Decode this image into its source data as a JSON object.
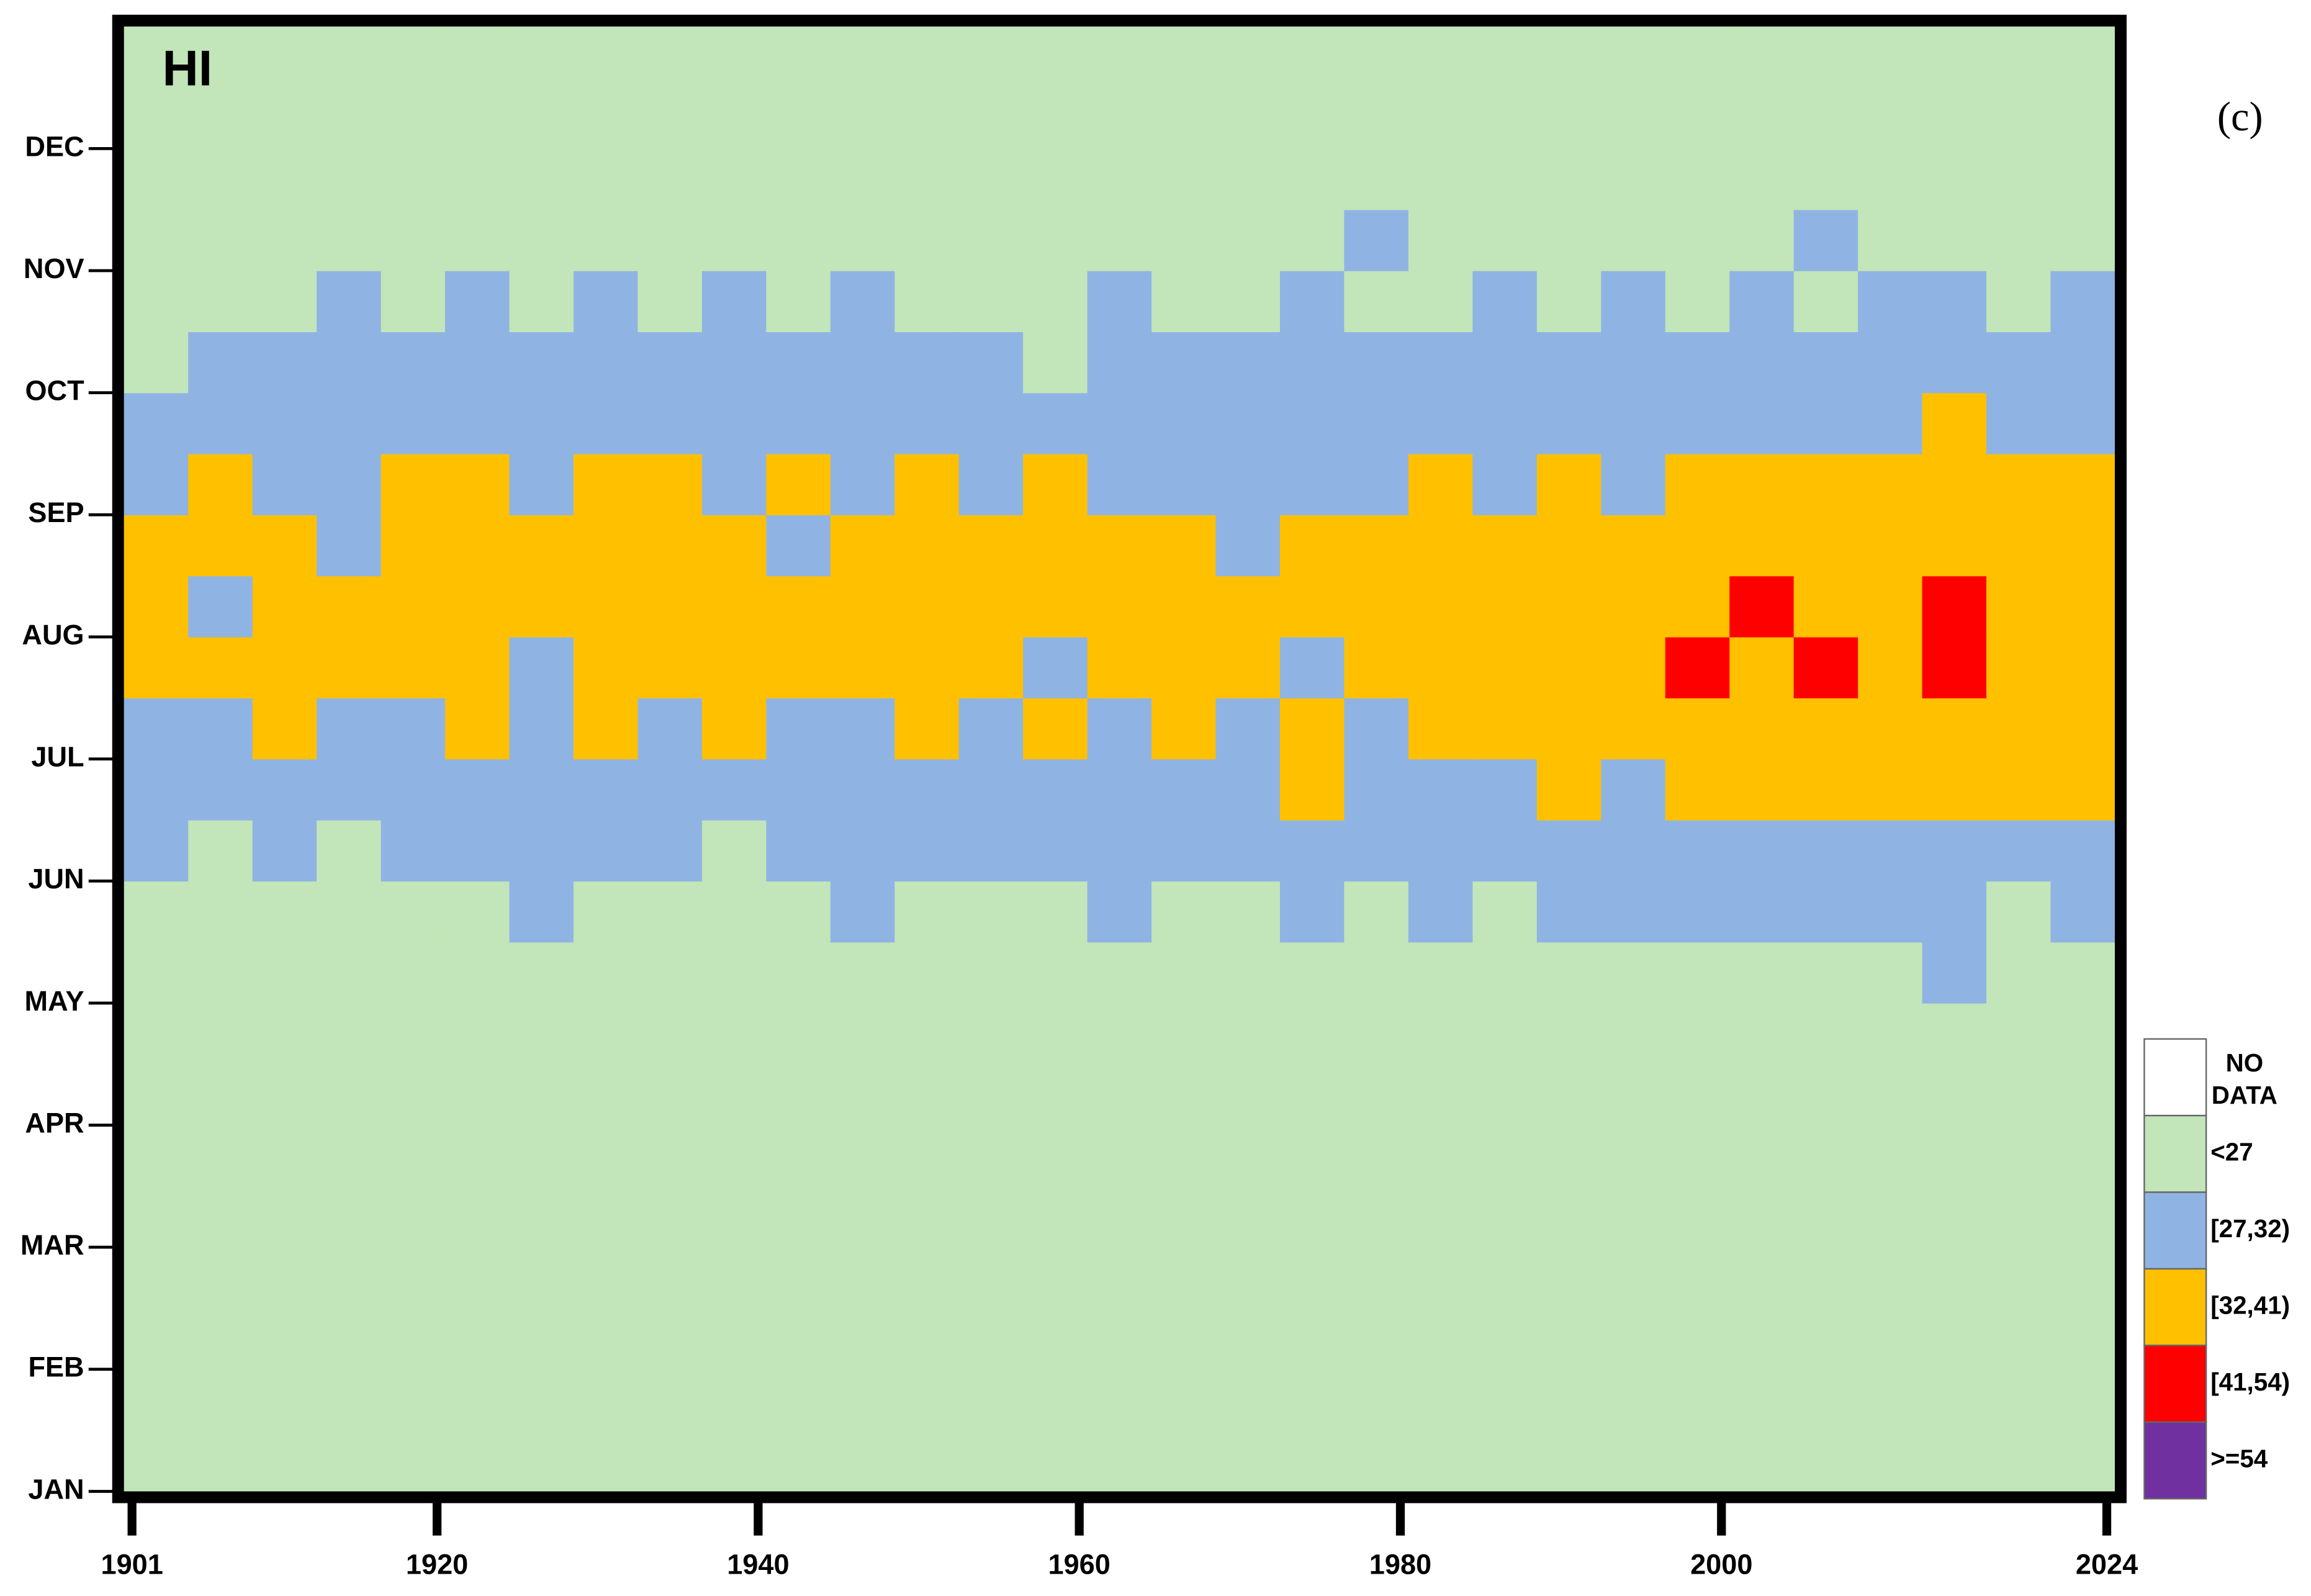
{
  "chart_data": {
    "type": "heatmap",
    "title": "HI",
    "annotation": "(c)",
    "xlim": [
      1900.5,
      2024.5
    ],
    "xticks": [
      1901,
      1920,
      1940,
      1960,
      1980,
      2000,
      2024
    ],
    "ylim": [
      0,
      12
    ],
    "yticks": [
      {
        "value": 0,
        "label": "JAN"
      },
      {
        "value": 1,
        "label": "FEB"
      },
      {
        "value": 2,
        "label": "MAR"
      },
      {
        "value": 3,
        "label": "APR"
      },
      {
        "value": 4,
        "label": "MAY"
      },
      {
        "value": 5,
        "label": "JUN"
      },
      {
        "value": 6,
        "label": "JUL"
      },
      {
        "value": 7,
        "label": "AUG"
      },
      {
        "value": 8,
        "label": "SEP"
      },
      {
        "value": 9,
        "label": "OCT"
      },
      {
        "value": 10,
        "label": "NOV"
      },
      {
        "value": 11,
        "label": "DEC"
      }
    ],
    "x_edges": [
      1900.5,
      1904.5,
      1908.5,
      1912.5,
      1916.5,
      1920.5,
      1924.5,
      1928.5,
      1932.5,
      1936.5,
      1940.5,
      1944.5,
      1948.5,
      1952.5,
      1956.5,
      1960.5,
      1964.5,
      1968.5,
      1972.5,
      1976.5,
      1980.5,
      1984.5,
      1988.5,
      1992.5,
      1996.5,
      2000.5,
      2004.5,
      2008.5,
      2012.5,
      2016.5,
      2020.5,
      2024.5
    ],
    "y_edges": [
      0,
      0.5,
      1,
      1.5,
      2,
      2.5,
      3,
      3.5,
      4,
      4.5,
      5,
      5.5,
      6,
      6.5,
      7,
      7.5,
      8,
      8.5,
      9,
      9.5,
      10,
      10.5,
      11,
      11.5,
      12
    ],
    "classes": [
      {
        "label": "NO DATA",
        "color": "#ffffff"
      },
      {
        "label": "<27",
        "color": "#c2e5b9"
      },
      {
        "label": "[27,32)",
        "color": "#8fb4e3"
      },
      {
        "label": "[32,41)",
        "color": "#ffc000"
      },
      {
        "label": "[41,54)",
        "color": "#ff0000"
      },
      {
        "label": ">=54",
        "color": "#7030a0"
      }
    ],
    "z": [
      [
        1,
        1,
        1,
        1,
        1,
        1,
        1,
        1,
        1,
        1,
        1,
        1,
        1,
        1,
        1,
        1,
        1,
        1,
        1,
        1,
        1,
        1,
        1,
        1,
        1,
        1,
        1,
        1,
        1,
        1,
        1
      ],
      [
        1,
        1,
        1,
        1,
        1,
        1,
        1,
        1,
        1,
        1,
        1,
        1,
        1,
        1,
        1,
        1,
        1,
        1,
        1,
        1,
        1,
        1,
        1,
        1,
        1,
        1,
        1,
        1,
        1,
        1,
        1
      ],
      [
        1,
        1,
        1,
        1,
        1,
        1,
        1,
        1,
        1,
        1,
        1,
        1,
        1,
        1,
        1,
        1,
        1,
        1,
        1,
        1,
        1,
        1,
        1,
        1,
        1,
        1,
        1,
        1,
        1,
        1,
        1
      ],
      [
        1,
        1,
        1,
        1,
        1,
        1,
        1,
        1,
        1,
        1,
        1,
        1,
        1,
        1,
        1,
        1,
        1,
        1,
        1,
        1,
        1,
        1,
        1,
        1,
        1,
        1,
        1,
        1,
        1,
        1,
        1
      ],
      [
        1,
        1,
        1,
        1,
        1,
        1,
        1,
        1,
        1,
        1,
        1,
        1,
        1,
        1,
        1,
        1,
        1,
        1,
        1,
        1,
        1,
        1,
        1,
        1,
        1,
        1,
        1,
        1,
        1,
        1,
        1
      ],
      [
        1,
        1,
        1,
        1,
        1,
        1,
        1,
        1,
        1,
        1,
        1,
        1,
        1,
        1,
        1,
        1,
        1,
        1,
        1,
        1,
        1,
        1,
        1,
        1,
        1,
        1,
        1,
        1,
        1,
        1,
        1
      ],
      [
        1,
        1,
        1,
        1,
        1,
        1,
        1,
        1,
        1,
        1,
        1,
        1,
        1,
        1,
        1,
        1,
        1,
        1,
        1,
        1,
        1,
        1,
        1,
        1,
        1,
        1,
        1,
        1,
        1,
        1,
        1
      ],
      [
        1,
        1,
        1,
        1,
        1,
        1,
        1,
        1,
        1,
        1,
        1,
        1,
        1,
        1,
        1,
        1,
        1,
        1,
        1,
        1,
        1,
        1,
        1,
        1,
        1,
        1,
        1,
        1,
        1,
        1,
        1
      ],
      [
        1,
        1,
        1,
        1,
        1,
        1,
        1,
        1,
        1,
        1,
        1,
        1,
        1,
        1,
        1,
        1,
        1,
        1,
        1,
        1,
        1,
        1,
        1,
        1,
        1,
        1,
        1,
        1,
        2,
        1,
        1
      ],
      [
        1,
        1,
        1,
        1,
        1,
        1,
        2,
        1,
        1,
        1,
        1,
        2,
        1,
        1,
        1,
        2,
        1,
        1,
        2,
        1,
        2,
        1,
        2,
        2,
        2,
        2,
        2,
        2,
        2,
        1,
        2
      ],
      [
        2,
        1,
        2,
        1,
        2,
        2,
        2,
        2,
        2,
        1,
        2,
        2,
        2,
        2,
        2,
        2,
        2,
        2,
        2,
        2,
        2,
        2,
        2,
        2,
        2,
        2,
        2,
        2,
        2,
        2,
        2
      ],
      [
        2,
        2,
        2,
        2,
        2,
        2,
        2,
        2,
        2,
        2,
        2,
        2,
        2,
        2,
        2,
        2,
        2,
        2,
        3,
        2,
        2,
        2,
        3,
        2,
        3,
        3,
        3,
        3,
        3,
        3,
        3
      ],
      [
        2,
        2,
        3,
        2,
        2,
        3,
        2,
        3,
        2,
        3,
        2,
        2,
        3,
        2,
        3,
        2,
        3,
        2,
        3,
        2,
        3,
        3,
        3,
        3,
        3,
        3,
        3,
        3,
        3,
        3,
        3
      ],
      [
        3,
        3,
        3,
        3,
        3,
        3,
        2,
        3,
        3,
        3,
        3,
        3,
        3,
        3,
        2,
        3,
        3,
        3,
        2,
        3,
        3,
        3,
        3,
        3,
        4,
        3,
        4,
        3,
        4,
        3,
        3
      ],
      [
        3,
        2,
        3,
        3,
        3,
        3,
        3,
        3,
        3,
        3,
        3,
        3,
        3,
        3,
        3,
        3,
        3,
        3,
        3,
        3,
        3,
        3,
        3,
        3,
        3,
        4,
        3,
        3,
        4,
        3,
        3
      ],
      [
        3,
        3,
        3,
        2,
        3,
        3,
        3,
        3,
        3,
        3,
        2,
        3,
        3,
        3,
        3,
        3,
        3,
        2,
        3,
        3,
        3,
        3,
        3,
        3,
        3,
        3,
        3,
        3,
        3,
        3,
        3
      ],
      [
        2,
        3,
        2,
        2,
        3,
        3,
        2,
        3,
        3,
        2,
        3,
        2,
        3,
        2,
        3,
        2,
        2,
        2,
        2,
        2,
        3,
        2,
        3,
        2,
        3,
        3,
        3,
        3,
        3,
        3,
        3
      ],
      [
        2,
        2,
        2,
        2,
        2,
        2,
        2,
        2,
        2,
        2,
        2,
        2,
        2,
        2,
        2,
        2,
        2,
        2,
        2,
        2,
        2,
        2,
        2,
        2,
        2,
        2,
        2,
        2,
        3,
        2,
        2
      ],
      [
        1,
        2,
        2,
        2,
        2,
        2,
        2,
        2,
        2,
        2,
        2,
        2,
        2,
        2,
        1,
        2,
        2,
        2,
        2,
        2,
        2,
        2,
        2,
        2,
        2,
        2,
        2,
        2,
        2,
        2,
        2
      ],
      [
        1,
        1,
        1,
        2,
        1,
        2,
        1,
        2,
        1,
        2,
        1,
        2,
        1,
        1,
        1,
        2,
        1,
        1,
        2,
        1,
        1,
        2,
        1,
        2,
        1,
        2,
        1,
        2,
        2,
        1,
        2
      ],
      [
        1,
        1,
        1,
        1,
        1,
        1,
        1,
        1,
        1,
        1,
        1,
        1,
        1,
        1,
        1,
        1,
        1,
        1,
        1,
        2,
        1,
        1,
        1,
        1,
        1,
        1,
        2,
        1,
        1,
        1,
        1
      ],
      [
        1,
        1,
        1,
        1,
        1,
        1,
        1,
        1,
        1,
        1,
        1,
        1,
        1,
        1,
        1,
        1,
        1,
        1,
        1,
        1,
        1,
        1,
        1,
        1,
        1,
        1,
        1,
        1,
        1,
        1,
        1
      ],
      [
        1,
        1,
        1,
        1,
        1,
        1,
        1,
        1,
        1,
        1,
        1,
        1,
        1,
        1,
        1,
        1,
        1,
        1,
        1,
        1,
        1,
        1,
        1,
        1,
        1,
        1,
        1,
        1,
        1,
        1,
        1
      ],
      [
        1,
        1,
        1,
        1,
        1,
        1,
        1,
        1,
        1,
        1,
        1,
        1,
        1,
        1,
        1,
        1,
        1,
        1,
        1,
        1,
        1,
        1,
        1,
        1,
        1,
        1,
        1,
        1,
        1,
        1,
        1
      ]
    ]
  }
}
